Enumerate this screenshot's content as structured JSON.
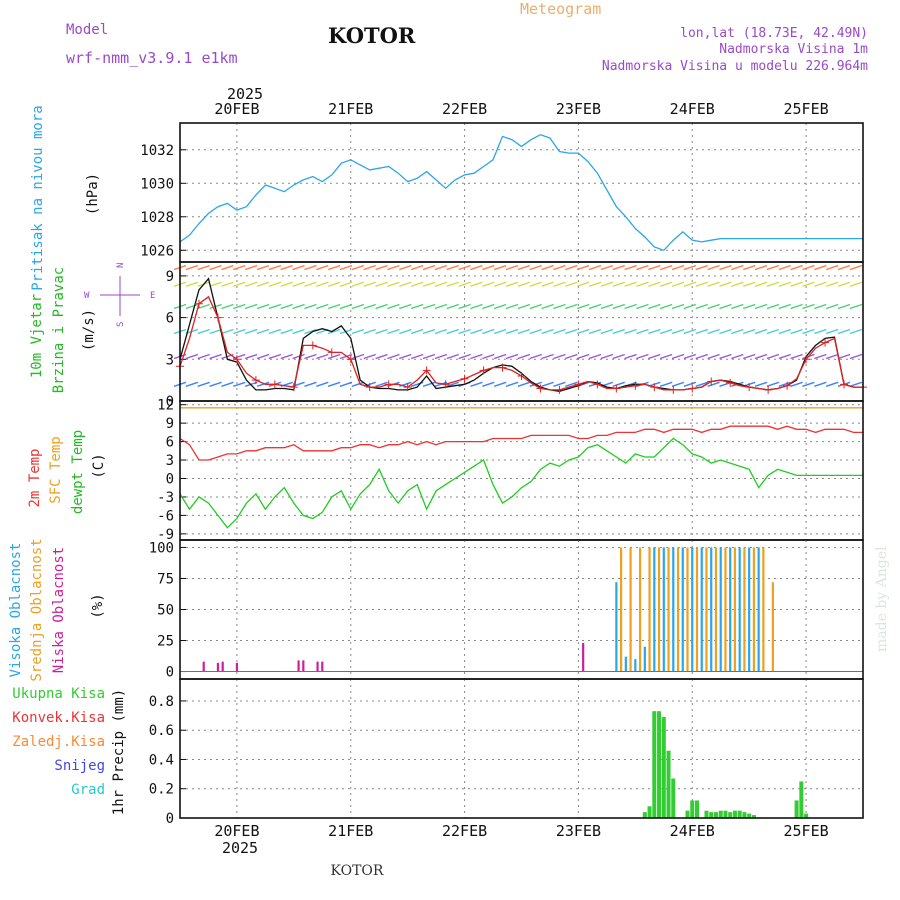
{
  "header": {
    "model_label": "Model",
    "model_name": "wrf-nmm_v3.9.1 e1km",
    "city": "KOTOR",
    "meteogram": "Meteogram",
    "lonlat": "lon,lat (18.73E, 42.49N)",
    "elevation": "Nadmorska Visina 1m",
    "model_elevation": "Nadmorska Visina u modelu 226.964m"
  },
  "footer": {
    "city": "KOTOR",
    "credit": "made by Angel"
  },
  "time_axis": {
    "year": "2025",
    "days": [
      "20FEB",
      "21FEB",
      "22FEB",
      "23FEB",
      "24FEB",
      "25FEB"
    ],
    "day_centers_hours": [
      12,
      36,
      60,
      84,
      108,
      132
    ],
    "range_hours": [
      0,
      144
    ]
  },
  "wind_legend": {
    "north": "N",
    "south": "S",
    "east": "E",
    "west": "W"
  },
  "panels": {
    "pressure": {
      "label": "Pritisak na nivou mora",
      "unit": "(hPa)",
      "color": "#2aa7e8"
    },
    "wind": {
      "label_a": "10m Vjetar",
      "label_b": "Brzina i Pravac",
      "unit": "(m/s)"
    },
    "temp": {
      "label_a": "2m Temp",
      "label_b": "SFC Temp",
      "label_c": "dewpt Temp",
      "unit": "(C)"
    },
    "cloud": {
      "label_a": "Visoka Oblacnost",
      "label_b": "Srednja Oblacnost",
      "label_c": "Niska Oblacnost",
      "unit": "(%)"
    },
    "precip": {
      "unit": "1hr Precip (mm)"
    }
  },
  "precip_legend": [
    {
      "label": "Ukupna Kisa",
      "color": "#33cc33"
    },
    {
      "label": "Konvek.Kisa",
      "color": "#ee3333"
    },
    {
      "label": "Zaledj.Kisa",
      "color": "#ff8833"
    },
    {
      "label": "Snijeg",
      "color": "#4444ee"
    },
    {
      "label": "Grad",
      "color": "#22cccc"
    }
  ],
  "chart_data": [
    {
      "type": "line",
      "title": "Pritisak na nivou mora",
      "ylabel": "(hPa)",
      "ylim": [
        1025.3,
        1033.6
      ],
      "yticks": [
        "1026",
        "1028",
        "1030",
        "1032"
      ],
      "grid": true,
      "series": [
        {
          "color": "#2aa7e8",
          "x": [
            0,
            2,
            4,
            6,
            8,
            10,
            12,
            14,
            16,
            18,
            20,
            22,
            24,
            26,
            28,
            30,
            32,
            34,
            36,
            38,
            40,
            42,
            44,
            46,
            48,
            50,
            52,
            54,
            56,
            58,
            60,
            62,
            64,
            66,
            68,
            70,
            72,
            74,
            76,
            78,
            80,
            82,
            84,
            86,
            88,
            90,
            92,
            94,
            96,
            98,
            100,
            102,
            104,
            106,
            108,
            110,
            112,
            114,
            116,
            118,
            120,
            122,
            124,
            126,
            128,
            130,
            132,
            134,
            136,
            138,
            140,
            142,
            144
          ],
          "y": [
            1026.5,
            1026.9,
            1027.6,
            1028.2,
            1028.6,
            1028.8,
            1028.4,
            1028.6,
            1029.3,
            1029.9,
            1029.7,
            1029.5,
            1029.9,
            1030.2,
            1030.4,
            1030.1,
            1030.5,
            1031.2,
            1031.4,
            1031.1,
            1030.8,
            1030.9,
            1031.0,
            1030.6,
            1030.1,
            1030.3,
            1030.7,
            1030.2,
            1029.7,
            1030.2,
            1030.5,
            1030.6,
            1031.0,
            1031.4,
            1032.8,
            1032.6,
            1032.2,
            1032.6,
            1032.9,
            1032.7,
            1031.9,
            1031.8,
            1031.8,
            1031.3,
            1030.6,
            1029.6,
            1028.6,
            1028.0,
            1027.3,
            1026.8,
            1026.2,
            1026.0,
            1026.6,
            1027.1,
            1026.6,
            1026.5,
            1026.6,
            1026.7,
            1026.7,
            1026.7,
            1026.7,
            1026.7,
            1026.7,
            1026.7,
            1026.7,
            1026.7,
            1026.7,
            1026.7,
            1026.7,
            1026.7,
            1026.7,
            1026.7,
            1026.7
          ]
        }
      ]
    },
    {
      "type": "line",
      "title": "10m Vjetar Brzina i Pravac",
      "ylabel": "(m/s)",
      "ylim": [
        0,
        10
      ],
      "yticks": [
        "0",
        "3",
        "6",
        "9"
      ],
      "grid": true,
      "series": [
        {
          "color": "#111111",
          "x": [
            0,
            2,
            4,
            6,
            8,
            10,
            12,
            14,
            16,
            18,
            20,
            22,
            24,
            26,
            28,
            30,
            32,
            34,
            36,
            38,
            40,
            42,
            44,
            46,
            48,
            50,
            52,
            54,
            56,
            58,
            60,
            62,
            64,
            66,
            68,
            70,
            72,
            74,
            76,
            78,
            80,
            82,
            84,
            86,
            88,
            90,
            92,
            94,
            96,
            98,
            100,
            102,
            104,
            106,
            108,
            110,
            112,
            114,
            116,
            118,
            120,
            122,
            124,
            126,
            128,
            130,
            132,
            134,
            136,
            138,
            140,
            142,
            144
          ],
          "y": [
            3.0,
            5.5,
            8.0,
            8.8,
            6.0,
            3.0,
            2.8,
            1.5,
            0.8,
            0.8,
            0.9,
            0.9,
            0.8,
            4.5,
            5.0,
            5.2,
            5.0,
            5.4,
            4.5,
            1.5,
            1.0,
            0.9,
            0.9,
            0.8,
            0.8,
            1.0,
            1.8,
            0.9,
            1.0,
            1.1,
            1.2,
            1.5,
            2.0,
            2.4,
            2.6,
            2.5,
            2.0,
            1.4,
            1.0,
            0.8,
            0.7,
            0.9,
            1.1,
            1.4,
            1.3,
            1.0,
            0.9,
            1.1,
            1.2,
            1.2,
            1.0,
            0.9,
            0.8,
            0.8,
            0.9,
            1.0,
            1.4,
            1.5,
            1.4,
            1.2,
            1.0,
            0.9,
            0.8,
            0.9,
            1.1,
            1.5,
            3.2,
            4.0,
            4.5,
            4.6,
            1.2,
            1.0,
            1.0
          ]
        },
        {
          "color": "#dd2222",
          "marker": "+",
          "x": [
            0,
            2,
            4,
            6,
            8,
            10,
            12,
            14,
            16,
            18,
            20,
            22,
            24,
            26,
            28,
            30,
            32,
            34,
            36,
            38,
            40,
            42,
            44,
            46,
            48,
            50,
            52,
            54,
            56,
            58,
            60,
            62,
            64,
            66,
            68,
            70,
            72,
            74,
            76,
            78,
            80,
            82,
            84,
            86,
            88,
            90,
            92,
            94,
            96,
            98,
            100,
            102,
            104,
            106,
            108,
            110,
            112,
            114,
            116,
            118,
            120,
            122,
            124,
            126,
            128,
            130,
            132,
            134,
            136,
            138,
            140,
            142,
            144
          ],
          "y": [
            2.5,
            4.5,
            7.0,
            7.5,
            6.0,
            3.5,
            3.0,
            2.0,
            1.5,
            1.2,
            1.2,
            1.1,
            1.0,
            4.0,
            4.0,
            3.8,
            3.5,
            3.5,
            3.0,
            1.2,
            1.0,
            1.0,
            1.2,
            1.2,
            1.0,
            1.5,
            2.2,
            1.3,
            1.2,
            1.4,
            1.6,
            1.9,
            2.2,
            2.4,
            2.4,
            2.2,
            1.8,
            1.3,
            0.9,
            0.8,
            0.8,
            1.0,
            1.2,
            1.4,
            1.2,
            0.9,
            0.9,
            1.0,
            1.1,
            1.2,
            1.0,
            0.8,
            0.8,
            0.8,
            0.9,
            1.0,
            1.4,
            1.5,
            1.3,
            1.1,
            1.0,
            0.9,
            0.8,
            0.9,
            1.1,
            1.6,
            3.0,
            3.8,
            4.2,
            4.5,
            1.2,
            1.0,
            1.0
          ]
        }
      ]
    },
    {
      "type": "line",
      "title": "2m Temp / SFC Temp / dewpt Temp",
      "ylabel": "(C)",
      "ylim": [
        -10,
        12.6
      ],
      "yticks": [
        "-9",
        "-6",
        "-3",
        "0",
        "3",
        "6",
        "9",
        "12"
      ],
      "grid": true,
      "series": [
        {
          "color": "#ee3333",
          "x": [
            0,
            2,
            4,
            6,
            8,
            10,
            12,
            14,
            16,
            18,
            20,
            22,
            24,
            26,
            28,
            30,
            32,
            34,
            36,
            38,
            40,
            42,
            44,
            46,
            48,
            50,
            52,
            54,
            56,
            58,
            60,
            62,
            64,
            66,
            68,
            70,
            72,
            74,
            76,
            78,
            80,
            82,
            84,
            86,
            88,
            90,
            92,
            94,
            96,
            98,
            100,
            102,
            104,
            106,
            108,
            110,
            112,
            114,
            116,
            118,
            120,
            122,
            124,
            126,
            128,
            130,
            132,
            134,
            136,
            138,
            140,
            142,
            144
          ],
          "y": [
            6.5,
            5.5,
            3.0,
            3.0,
            3.5,
            4.0,
            4.0,
            4.5,
            4.5,
            5.0,
            5.0,
            5.0,
            5.5,
            4.5,
            4.5,
            4.5,
            4.5,
            5.0,
            5.0,
            5.5,
            5.5,
            5.0,
            5.5,
            5.5,
            6.0,
            5.5,
            6.0,
            5.5,
            6.0,
            6.0,
            6.0,
            6.0,
            6.0,
            6.5,
            6.5,
            6.5,
            6.5,
            7.0,
            7.0,
            7.0,
            7.0,
            7.0,
            6.5,
            6.5,
            7.0,
            7.0,
            7.5,
            7.5,
            7.5,
            8.0,
            8.0,
            7.5,
            8.0,
            8.0,
            8.0,
            7.5,
            8.0,
            8.0,
            8.5,
            8.5,
            8.5,
            8.5,
            8.5,
            8.0,
            8.5,
            8.0,
            8.0,
            7.5,
            8.0,
            8.0,
            8.0,
            7.5,
            7.5
          ]
        },
        {
          "color": "#eea020",
          "x": [
            0,
            144
          ],
          "y": [
            11.5,
            11.5
          ]
        },
        {
          "color": "#22cc22",
          "x": [
            0,
            2,
            4,
            6,
            8,
            10,
            12,
            14,
            16,
            18,
            20,
            22,
            24,
            26,
            28,
            30,
            32,
            34,
            36,
            38,
            40,
            42,
            44,
            46,
            48,
            50,
            52,
            54,
            56,
            58,
            60,
            62,
            64,
            66,
            68,
            70,
            72,
            74,
            76,
            78,
            80,
            82,
            84,
            86,
            88,
            90,
            92,
            94,
            96,
            98,
            100,
            102,
            104,
            106,
            108,
            110,
            112,
            114,
            116,
            118,
            120,
            122,
            124,
            126,
            128,
            130,
            132,
            134,
            136,
            138,
            140,
            142,
            144
          ],
          "y": [
            -2.5,
            -5.0,
            -3.0,
            -4.0,
            -6.0,
            -8.0,
            -6.5,
            -4.0,
            -2.5,
            -5.0,
            -3.0,
            -1.5,
            -4.0,
            -6.0,
            -6.5,
            -5.5,
            -3.0,
            -2.0,
            -5.0,
            -2.5,
            -1.0,
            1.5,
            -2.0,
            -4.0,
            -2.0,
            -1.0,
            -5.0,
            -2.0,
            -1.0,
            0.0,
            1.0,
            2.0,
            3.0,
            -1.0,
            -4.0,
            -3.0,
            -1.5,
            -0.5,
            1.5,
            2.5,
            2.0,
            3.0,
            3.5,
            5.0,
            5.5,
            4.5,
            3.5,
            2.5,
            4.0,
            3.5,
            3.5,
            5.0,
            6.5,
            5.5,
            4.0,
            3.5,
            2.5,
            3.0,
            2.5,
            2.0,
            1.5,
            -1.5,
            0.5,
            1.5,
            1.0,
            0.5,
            0.5,
            0.5,
            0.5,
            0.5,
            0.5,
            0.5,
            0.5
          ]
        }
      ]
    },
    {
      "type": "bar",
      "title": "Visoka / Srednja / Niska Oblacnost",
      "ylabel": "(%)",
      "ylim": [
        -6,
        106
      ],
      "yticks": [
        "0",
        "25",
        "50",
        "75",
        "100"
      ],
      "grid": true,
      "series": [
        {
          "name": "Visoka Oblacnost",
          "color": "#2aa7e8",
          "x": [
            92,
            94,
            96,
            98,
            100,
            102,
            104,
            106,
            108,
            110,
            112,
            114,
            116,
            118,
            120,
            122
          ],
          "y": [
            72,
            12,
            10,
            20,
            100,
            100,
            100,
            100,
            100,
            100,
            100,
            100,
            100,
            100,
            100,
            100
          ]
        },
        {
          "name": "Srednja Oblacnost",
          "color": "#eea020",
          "x": [
            93,
            95,
            97,
            99,
            101,
            103,
            105,
            107,
            109,
            111,
            113,
            115,
            117,
            119,
            121,
            123,
            125,
            127
          ],
          "y": [
            100,
            100,
            100,
            100,
            100,
            100,
            100,
            100,
            100,
            100,
            100,
            100,
            100,
            100,
            100,
            100,
            72,
            0
          ]
        },
        {
          "name": "Niska Oblacnost",
          "color": "#cc1f9c",
          "x": [
            5,
            8,
            9,
            12,
            25,
            26,
            29,
            30,
            85
          ],
          "y": [
            8,
            7,
            8,
            7,
            9,
            9,
            8,
            8,
            23
          ]
        }
      ]
    },
    {
      "type": "bar",
      "title": "1hr Precip",
      "ylabel": "1hr Precip (mm)",
      "ylim": [
        0,
        0.95
      ],
      "yticks": [
        "0",
        "0.2",
        "0.4",
        "0.6",
        "0.8"
      ],
      "grid": true,
      "series": [
        {
          "name": "Ukupna Kisa",
          "color": "#33cc33",
          "x": [
            98,
            99,
            100,
            101,
            102,
            103,
            104,
            107,
            108,
            109,
            111,
            112,
            113,
            114,
            115,
            116,
            117,
            118,
            119,
            120,
            121,
            130,
            131,
            132
          ],
          "y": [
            0.04,
            0.08,
            0.73,
            0.73,
            0.69,
            0.46,
            0.27,
            0.05,
            0.12,
            0.12,
            0.05,
            0.04,
            0.04,
            0.05,
            0.05,
            0.04,
            0.05,
            0.05,
            0.04,
            0.03,
            0.02,
            0.12,
            0.25,
            0.03
          ]
        }
      ]
    }
  ]
}
